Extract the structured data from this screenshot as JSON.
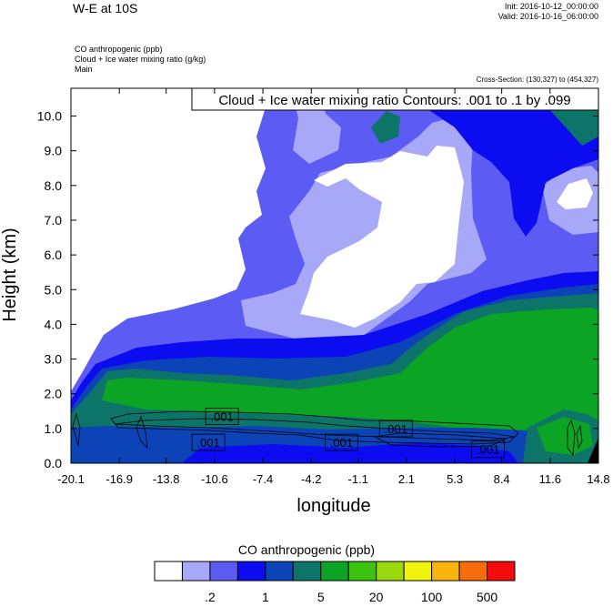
{
  "header": {
    "title": "W-E at 10S",
    "init": "Init: 2016-10-12_00:00:00",
    "valid": "Valid: 2016-10-16_06:00:00",
    "fields": [
      "CO anthropogenic   (ppb)",
      "Cloud + Ice water mixing ratio   (g/kg)",
      "Main"
    ],
    "cross_section": "Cross-Section: (130,327) to (454,327)"
  },
  "chart_data": {
    "type": "heatmap",
    "title": "",
    "xlabel": "longitude",
    "ylabel": "Height (km)",
    "xlim": [
      -20.1,
      14.8
    ],
    "ylim": [
      0.0,
      10.8
    ],
    "x_ticks": [
      "-20.1",
      "-16.9",
      "-13.8",
      "-10.6",
      "-7.4",
      "-4.2",
      "-1.1",
      "2.1",
      "5.3",
      "8.4",
      "11.6",
      "14.8"
    ],
    "y_ticks": [
      "0.0",
      "1.0",
      "2.0",
      "3.0",
      "4.0",
      "5.0",
      "6.0",
      "7.0",
      "8.0",
      "9.0",
      "10.0"
    ],
    "fill_field": "CO anthropogenic (ppb)",
    "contour_field": "Cloud + Ice water mixing ratio (g/kg)",
    "contour_info": "Cloud + Ice water mixing ratio Contours: .001 to .1 by .099",
    "contour_labels": [
      {
        "text": ".001",
        "x": -10.1,
        "height": 1.35
      },
      {
        "text": ".001",
        "x": -11.0,
        "height": 0.6
      },
      {
        "text": ".001",
        "x": -2.2,
        "height": 0.6
      },
      {
        "text": ".001",
        "x": 1.4,
        "height": 1.0
      },
      {
        "text": ".001",
        "x": 7.5,
        "height": 0.4
      }
    ],
    "colorbar": {
      "title": "CO anthropogenic  (ppb)",
      "colors": [
        "#ffffff",
        "#a8a8f8",
        "#5c5cf4",
        "#0c0cf0",
        "#0c44b8",
        "#0c7468",
        "#0ca424",
        "#3cc40c",
        "#98d80c",
        "#f0f40c",
        "#f8b40c",
        "#f86c0c",
        "#f40c0c"
      ],
      "labels": [
        ".2",
        "1",
        "5",
        "20",
        "100",
        "500"
      ]
    }
  }
}
